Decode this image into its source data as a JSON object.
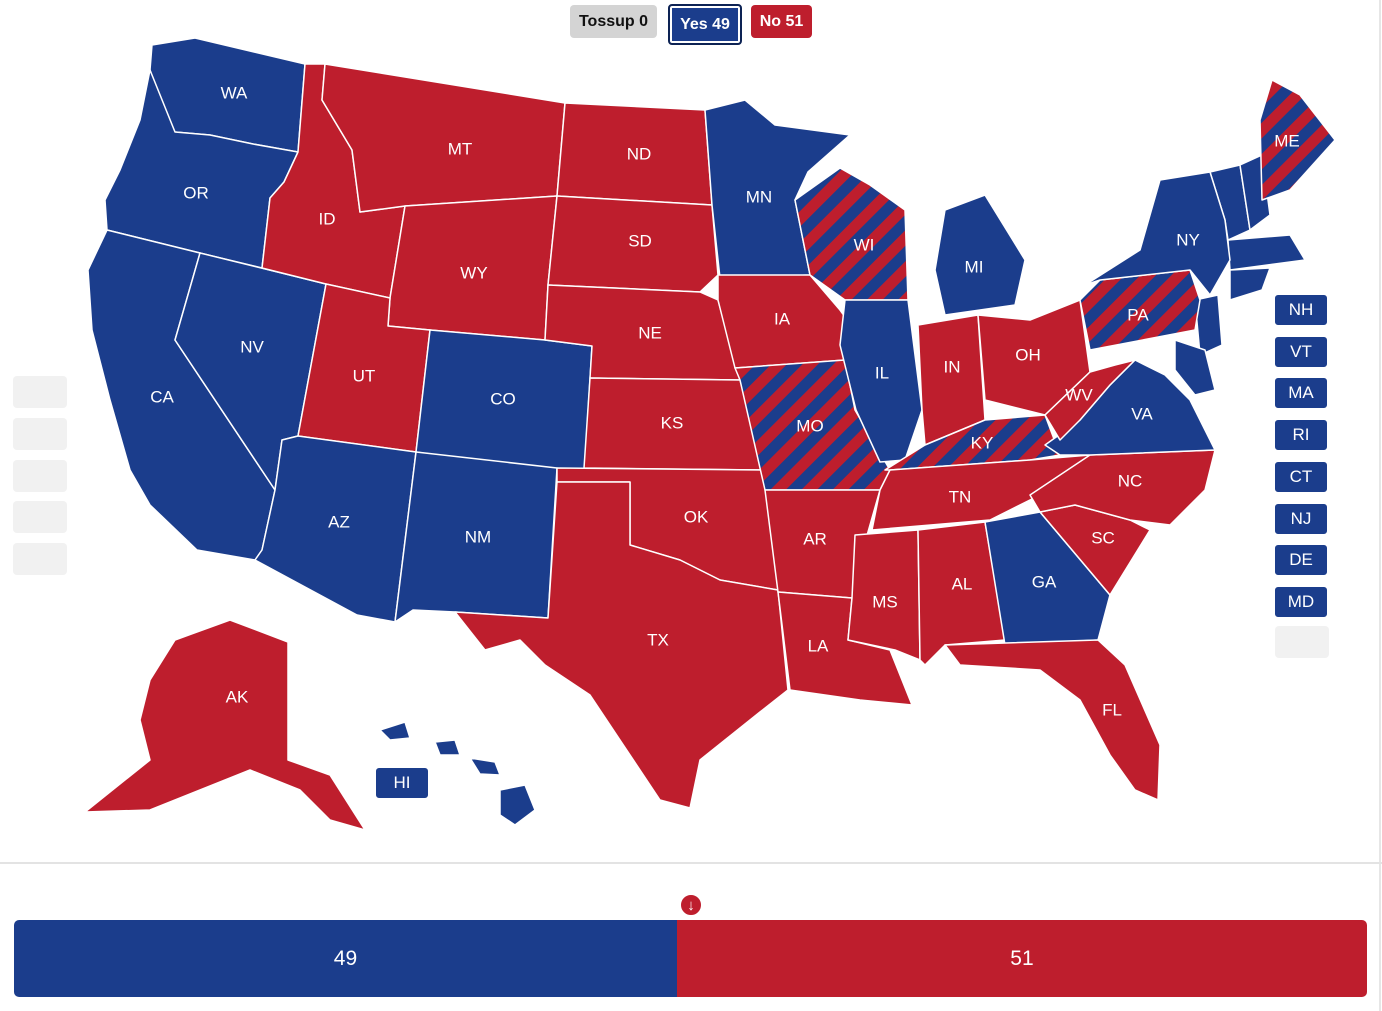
{
  "legend": {
    "tossup_label": "Tossup 0",
    "yes_label": "Yes 49",
    "no_label": "No 51"
  },
  "colors": {
    "yes": "#1b3d8c",
    "no": "#be1e2d",
    "tossup": "#d4d4d4",
    "empty": "#f1f1f1"
  },
  "states": [
    {
      "abbr": "WA",
      "result": "yes"
    },
    {
      "abbr": "OR",
      "result": "yes"
    },
    {
      "abbr": "CA",
      "result": "yes"
    },
    {
      "abbr": "NV",
      "result": "yes"
    },
    {
      "abbr": "ID",
      "result": "no"
    },
    {
      "abbr": "MT",
      "result": "no"
    },
    {
      "abbr": "WY",
      "result": "no"
    },
    {
      "abbr": "UT",
      "result": "no"
    },
    {
      "abbr": "AZ",
      "result": "yes"
    },
    {
      "abbr": "CO",
      "result": "yes"
    },
    {
      "abbr": "NM",
      "result": "yes"
    },
    {
      "abbr": "ND",
      "result": "no"
    },
    {
      "abbr": "SD",
      "result": "no"
    },
    {
      "abbr": "NE",
      "result": "no"
    },
    {
      "abbr": "KS",
      "result": "no"
    },
    {
      "abbr": "OK",
      "result": "no"
    },
    {
      "abbr": "TX",
      "result": "no"
    },
    {
      "abbr": "MN",
      "result": "yes"
    },
    {
      "abbr": "IA",
      "result": "no"
    },
    {
      "abbr": "MO",
      "result": "split"
    },
    {
      "abbr": "AR",
      "result": "no"
    },
    {
      "abbr": "LA",
      "result": "no"
    },
    {
      "abbr": "WI",
      "result": "split"
    },
    {
      "abbr": "IL",
      "result": "yes"
    },
    {
      "abbr": "MI",
      "result": "yes"
    },
    {
      "abbr": "IN",
      "result": "no"
    },
    {
      "abbr": "OH",
      "result": "no"
    },
    {
      "abbr": "KY",
      "result": "split"
    },
    {
      "abbr": "TN",
      "result": "no"
    },
    {
      "abbr": "MS",
      "result": "no"
    },
    {
      "abbr": "AL",
      "result": "no"
    },
    {
      "abbr": "GA",
      "result": "yes"
    },
    {
      "abbr": "FL",
      "result": "no"
    },
    {
      "abbr": "SC",
      "result": "no"
    },
    {
      "abbr": "NC",
      "result": "no"
    },
    {
      "abbr": "VA",
      "result": "yes"
    },
    {
      "abbr": "WV",
      "result": "no"
    },
    {
      "abbr": "PA",
      "result": "split"
    },
    {
      "abbr": "NY",
      "result": "yes"
    },
    {
      "abbr": "ME",
      "result": "split"
    },
    {
      "abbr": "AK",
      "result": "no"
    },
    {
      "abbr": "HI",
      "result": "yes"
    }
  ],
  "small_states": [
    "NH",
    "VT",
    "MA",
    "RI",
    "CT",
    "NJ",
    "DE",
    "MD"
  ],
  "hi_label": "HI",
  "totals": {
    "yes": 49,
    "no": 51,
    "yes_label": "49",
    "no_label": "51"
  }
}
